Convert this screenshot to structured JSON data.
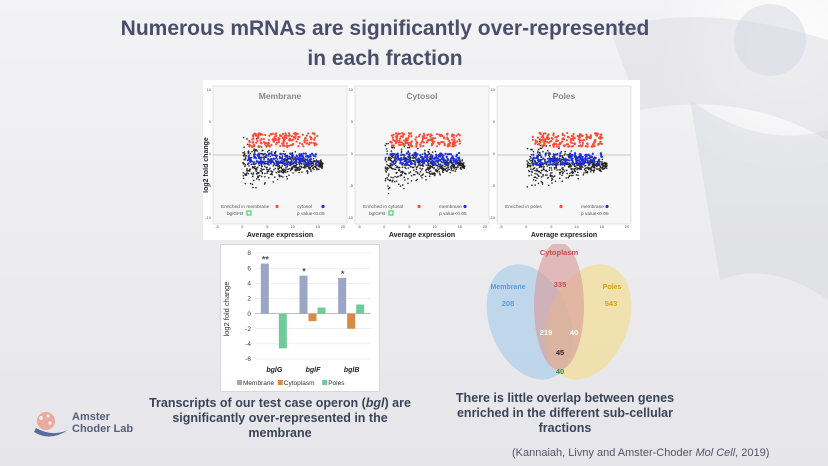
{
  "slide": {
    "title_line1": "Numerous mRNAs are significantly over-represented",
    "title_line2": "in each fraction"
  },
  "ma_plots": {
    "y_axis_label": "log2 fold change",
    "x_axis_label": "Average expression",
    "panels": [
      {
        "title": "Membrane",
        "legend_enriched": "Enriched in membrane",
        "legend_other": "cytosol",
        "legend_bgl": "bglGFB",
        "legend_p": "p value<0.05"
      },
      {
        "title": "Cytosol",
        "legend_enriched": "Enriched in cytosol",
        "legend_other": "membrane",
        "legend_bgl": "bglGFB",
        "legend_p": "p value<0.05"
      },
      {
        "title": "Poles",
        "legend_enriched": "Enriched in poles",
        "legend_other": "membrane",
        "legend_bgl": "",
        "legend_p": "p value<0.05"
      }
    ],
    "y_ticks": [
      "10",
      "5",
      "0",
      "-5",
      "-10"
    ],
    "x_ticks": [
      "-5",
      "0",
      "5",
      "10",
      "15",
      "20"
    ]
  },
  "chart_data": {
    "type": "bar",
    "title": "",
    "xlabel": "",
    "ylabel": "log2 fold change",
    "ylim": [
      -6,
      8
    ],
    "y_ticks": [
      "8",
      "6",
      "4",
      "2",
      "0",
      "-2",
      "-4",
      "-6"
    ],
    "categories": [
      "bglG",
      "bglF",
      "bglB"
    ],
    "series": [
      {
        "name": "Membrane",
        "color": "#9aa6c3",
        "values": [
          6.6,
          5.0,
          4.7
        ]
      },
      {
        "name": "Cytoplasm",
        "color": "#d98a48",
        "values": [
          0,
          -1.0,
          -2.0
        ]
      },
      {
        "name": "Poles",
        "color": "#6fcc9a",
        "values": [
          -4.6,
          0.8,
          1.2
        ]
      }
    ],
    "annotations": [
      "**",
      "*",
      "*"
    ],
    "legend_position": "bottom"
  },
  "venn": {
    "labels": {
      "membrane": "Membrane",
      "cytoplasm": "Cytoplasm",
      "poles": "Poles"
    },
    "counts": {
      "membrane_only": "208",
      "cytoplasm_only": "335",
      "poles_only": "543",
      "membrane_cytoplasm": "219",
      "cytoplasm_poles": "40",
      "all_three": "45",
      "membrane_poles": "40"
    },
    "colors": {
      "membrane": "#a9cdea",
      "cytoplasm": "#d89a98",
      "poles": "#f3da86"
    }
  },
  "captions": {
    "left_line1_pre": "Transcripts of our test case operon (",
    "left_line1_italic": "bgl",
    "left_line1_post": ") are",
    "left_line2": "significantly over-represented in the",
    "left_line3": "membrane",
    "right_line1": "There is little overlap between genes",
    "right_line2": "enriched in the different sub-cellular",
    "right_line3": "fractions"
  },
  "citation": {
    "pre": "(Kannaiah, Livny and Amster-Choder ",
    "italic": "Mol Cell",
    "post": ", 2019)"
  },
  "logo": {
    "line1": "Amster",
    "line2": "Choder Lab"
  }
}
